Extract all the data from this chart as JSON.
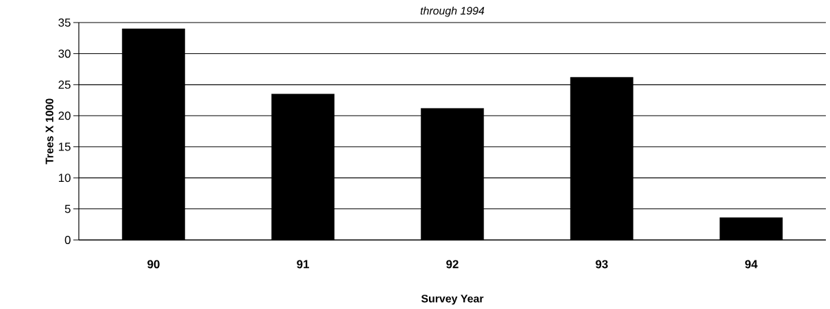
{
  "chart_data": {
    "type": "bar",
    "title": "through 1994",
    "xlabel": "Survey Year",
    "ylabel": "Trees X 1000",
    "categories": [
      "90",
      "91",
      "92",
      "93",
      "94"
    ],
    "values": [
      34,
      23.5,
      21.2,
      26.2,
      3.6
    ],
    "color": "#000000",
    "ylim": [
      0,
      35
    ],
    "yticks": [
      0,
      5,
      10,
      15,
      20,
      25,
      30,
      35
    ],
    "grid": "y"
  }
}
